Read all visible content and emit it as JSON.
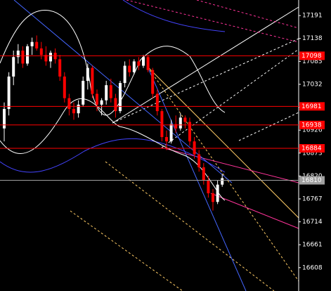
{
  "chart_data": {
    "type": "candlestick",
    "ylim": [
      16554,
      17227
    ],
    "yticks": [
      17191,
      17138,
      17085,
      17032,
      16979,
      16926,
      16873,
      16820,
      16767,
      16714,
      16661,
      16608
    ],
    "up_color": "#ffffff",
    "down_color": "#ff0000",
    "open": [
      16930,
      16975,
      17050,
      17095,
      17110,
      17080,
      17120,
      17130,
      17115,
      17100,
      17085,
      17105,
      17090,
      17050,
      17000,
      16975,
      16965,
      16985,
      17040,
      17070,
      17010,
      16985,
      16995,
      17030,
      17000,
      16970,
      17035,
      17075,
      17060,
      17085,
      17075,
      17095,
      17065,
      17010,
      16970,
      16910,
      16900,
      16940,
      16930,
      16955,
      16945,
      16900,
      16870,
      16840,
      16810,
      16780,
      16760,
      16800
    ],
    "high": [
      16990,
      17060,
      17110,
      17125,
      17120,
      17125,
      17140,
      17145,
      17130,
      17120,
      17110,
      17115,
      17100,
      17060,
      17010,
      16990,
      16995,
      17050,
      17080,
      17075,
      17020,
      17000,
      17040,
      17045,
      17010,
      17040,
      17085,
      17090,
      17090,
      17095,
      17100,
      17100,
      17070,
      17020,
      16975,
      16925,
      16950,
      16960,
      16965,
      16960,
      16955,
      16910,
      16880,
      16850,
      16820,
      16790,
      16810,
      16825
    ],
    "low": [
      16900,
      16960,
      17030,
      17080,
      17070,
      17075,
      17100,
      17110,
      17090,
      17075,
      17070,
      17080,
      17040,
      16990,
      16960,
      16950,
      16955,
      16980,
      17020,
      17000,
      16970,
      16960,
      16985,
      16990,
      16955,
      16965,
      17025,
      17050,
      17055,
      17065,
      17070,
      17060,
      17000,
      16960,
      16900,
      16880,
      16895,
      16920,
      16925,
      16930,
      16890,
      16860,
      16830,
      16800,
      16770,
      16740,
      16755,
      16795
    ],
    "close": [
      16975,
      17050,
      17095,
      17110,
      17080,
      17120,
      17130,
      17115,
      17100,
      17085,
      17105,
      17090,
      17050,
      17000,
      16975,
      16965,
      16985,
      17040,
      17070,
      17010,
      16985,
      16995,
      17030,
      17000,
      16970,
      17035,
      17075,
      17060,
      17085,
      17075,
      17095,
      17065,
      17010,
      16970,
      16910,
      16900,
      16940,
      16930,
      16955,
      16945,
      16900,
      16870,
      16840,
      16810,
      16780,
      16760,
      16800,
      16815
    ],
    "levels": [
      {
        "value": 17098,
        "color": "#ff0000"
      },
      {
        "value": 16981,
        "color": "#ff0000"
      },
      {
        "value": 16938,
        "color": "#ff0000"
      },
      {
        "value": 16884,
        "color": "#ff0000"
      },
      {
        "value": 16810,
        "color": "#a0a0a0"
      }
    ]
  }
}
